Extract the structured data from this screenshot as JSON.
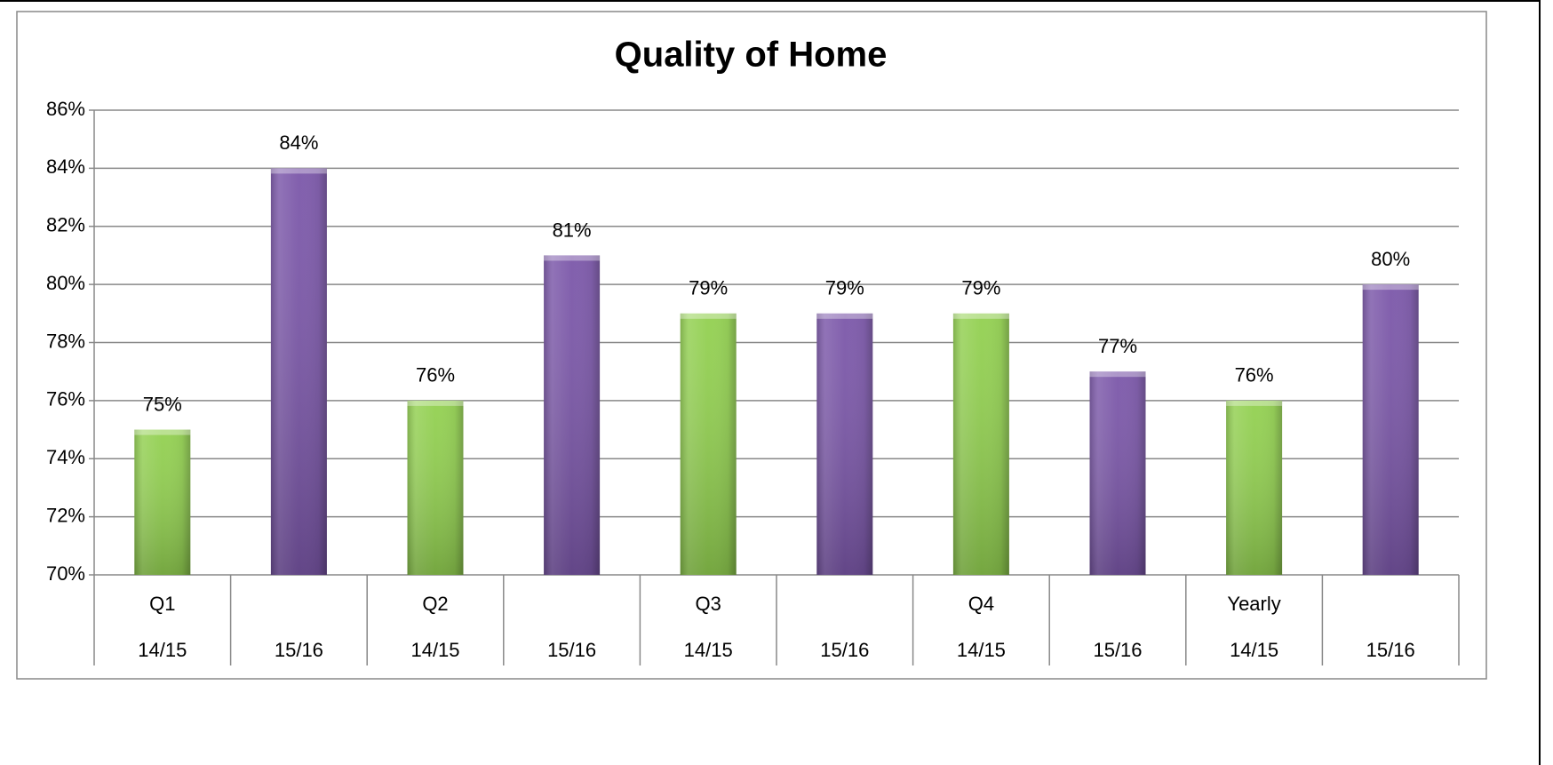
{
  "chart_data": {
    "type": "bar",
    "title": "Quality of Home",
    "groups": [
      "Q1",
      "Q2",
      "Q3",
      "Q4",
      "Yearly"
    ],
    "categories": [
      "14/15",
      "15/16",
      "14/15",
      "15/16",
      "14/15",
      "15/16",
      "14/15",
      "15/16",
      "14/15",
      "15/16"
    ],
    "values": [
      75,
      84,
      76,
      81,
      79,
      79,
      79,
      77,
      76,
      80
    ],
    "value_labels": [
      "75%",
      "84%",
      "76%",
      "81%",
      "79%",
      "79%",
      "79%",
      "77%",
      "76%",
      "80%"
    ],
    "colors": [
      "#92d050",
      "#7b57a9",
      "#92d050",
      "#7b57a9",
      "#92d050",
      "#7b57a9",
      "#92d050",
      "#7b57a9",
      "#92d050",
      "#7b57a9"
    ],
    "ylim": [
      70,
      86
    ],
    "yticks": [
      {
        "value": 70,
        "label": "70%"
      },
      {
        "value": 72,
        "label": "72%"
      },
      {
        "value": 74,
        "label": "74%"
      },
      {
        "value": 76,
        "label": "76%"
      },
      {
        "value": 78,
        "label": "78%"
      },
      {
        "value": 80,
        "label": "80%"
      },
      {
        "value": 82,
        "label": "82%"
      },
      {
        "value": 84,
        "label": "84%"
      },
      {
        "value": 86,
        "label": "86%"
      }
    ],
    "grid": true
  }
}
